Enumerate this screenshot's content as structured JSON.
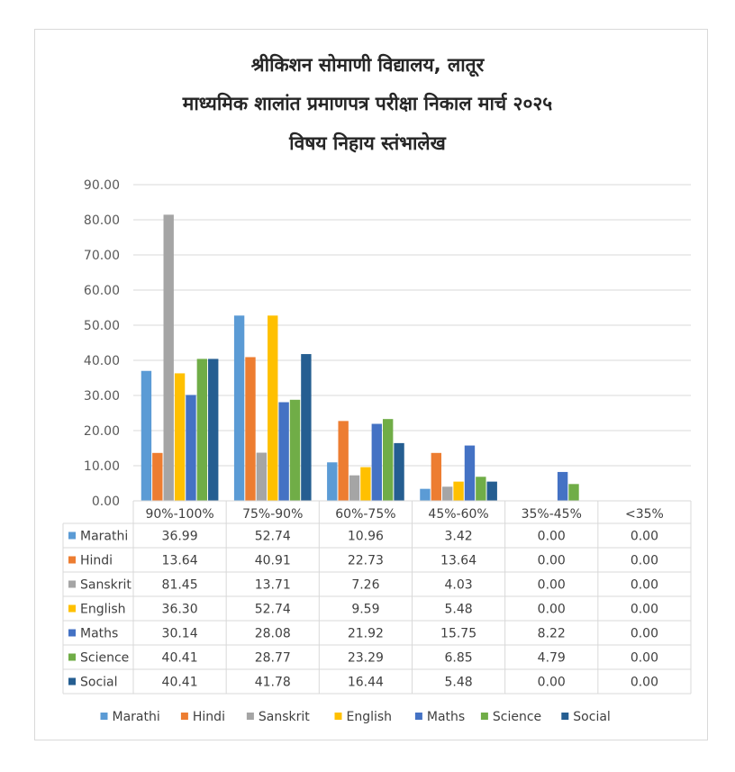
{
  "chart_data": {
    "type": "bar",
    "title_lines": [
      "श्रीकिशन सोमाणी विद्यालय, लातूर",
      "माध्यमिक शालांत प्रमाणपत्र परीक्षा निकाल मार्च २०२५",
      "विषय निहाय स्तंभालेख"
    ],
    "categories": [
      "90%-100%",
      "75%-90%",
      "60%-75%",
      "45%-60%",
      "35%-45%",
      "<35%"
    ],
    "series": [
      {
        "name": "Marathi",
        "color": "#5b9bd5",
        "values": [
          36.99,
          52.74,
          10.96,
          3.42,
          0.0,
          0.0
        ],
        "labels": [
          "36.99",
          "52.74",
          "10.96",
          "3.42",
          "0.00",
          "0.00"
        ]
      },
      {
        "name": "Hindi",
        "color": "#ed7d31",
        "values": [
          13.64,
          40.91,
          22.73,
          13.64,
          0.0,
          0.0
        ],
        "labels": [
          "13.64",
          "40.91",
          "22.73",
          "13.64",
          "0.00",
          "0.00"
        ]
      },
      {
        "name": "Sanskrit",
        "color": "#a5a5a5",
        "values": [
          81.45,
          13.71,
          7.26,
          4.03,
          0.0,
          0.0
        ],
        "labels": [
          "81.45",
          "13.71",
          "7.26",
          "4.03",
          "0.00",
          "0.00"
        ]
      },
      {
        "name": "English",
        "color": "#ffc000",
        "values": [
          36.3,
          52.74,
          9.59,
          5.48,
          0.0,
          0.0
        ],
        "labels": [
          "36.30",
          "52.74",
          "9.59",
          "5.48",
          "0.00",
          "0.00"
        ]
      },
      {
        "name": "Maths",
        "color": "#4472c4",
        "values": [
          30.14,
          28.08,
          21.92,
          15.75,
          8.22,
          0.0
        ],
        "labels": [
          "30.14",
          "28.08",
          "21.92",
          "15.75",
          "8.22",
          "0.00"
        ]
      },
      {
        "name": "Science",
        "color": "#70ad47",
        "values": [
          40.41,
          28.77,
          23.29,
          6.85,
          4.79,
          0.0
        ],
        "labels": [
          "40.41",
          "28.77",
          "23.29",
          "6.85",
          "4.79",
          "0.00"
        ]
      },
      {
        "name": "Social",
        "color": "#255e91",
        "values": [
          40.41,
          41.78,
          16.44,
          5.48,
          0.0,
          0.0
        ],
        "labels": [
          "40.41",
          "41.78",
          "16.44",
          "5.48",
          "0.00",
          "0.00"
        ]
      }
    ],
    "y_ticks": [
      "0.00",
      "10.00",
      "20.00",
      "30.00",
      "40.00",
      "50.00",
      "60.00",
      "70.00",
      "80.00",
      "90.00"
    ],
    "ylim": [
      0,
      90
    ],
    "grid": true,
    "legend_position": "bottom",
    "data_table": true
  }
}
